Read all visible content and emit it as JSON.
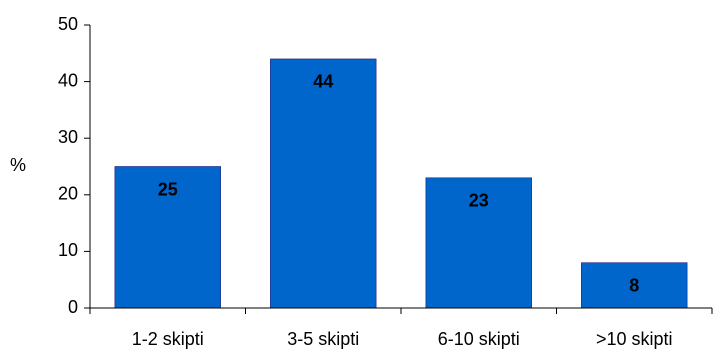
{
  "chart_data": {
    "type": "bar",
    "categories": [
      "1-2 skipti",
      "3-5 skipti",
      "6-10 skipti",
      ">10 skipti"
    ],
    "values": [
      25,
      44,
      23,
      8
    ],
    "data_labels": [
      "25",
      "44",
      "23",
      "8"
    ],
    "title": "",
    "xlabel": "",
    "ylabel": "%",
    "ylim": [
      0,
      50
    ],
    "yticks": [
      0,
      10,
      20,
      30,
      40,
      50
    ],
    "ytick_labels": [
      "0",
      "10",
      "20",
      "30",
      "40",
      "50"
    ],
    "grid": false,
    "legend": "none",
    "colors": {
      "bar": "#0066cc",
      "axis": "#000000",
      "label": "#000000"
    }
  }
}
